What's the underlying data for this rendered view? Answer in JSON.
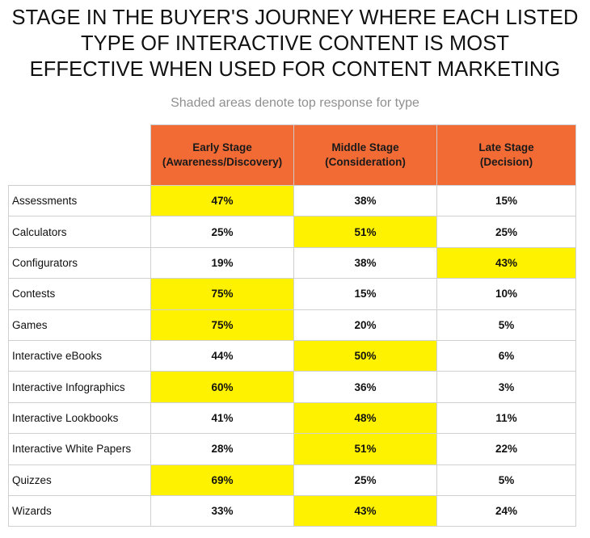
{
  "title_lines": [
    "STAGE IN THE BUYER'S JOURNEY WHERE EACH LISTED",
    "TYPE OF INTERACTIVE CONTENT IS MOST",
    "EFFECTIVE WHEN USED FOR CONTENT MARKETING"
  ],
  "subtitle": "Shaded areas denote top response for type",
  "colors": {
    "header_bg": "#f26b35",
    "highlight": "#fff200"
  },
  "chart_data": {
    "type": "table",
    "columns": [
      {
        "line1": "Early Stage",
        "line2": "(Awareness/Discovery)"
      },
      {
        "line1": "Middle Stage",
        "line2": "(Consideration)"
      },
      {
        "line1": "Late Stage",
        "line2": "(Decision)"
      }
    ],
    "rows": [
      {
        "label": "Assessments",
        "values": [
          "47%",
          "38%",
          "15%"
        ],
        "top": 0
      },
      {
        "label": "Calculators",
        "values": [
          "25%",
          "51%",
          "25%"
        ],
        "top": 1
      },
      {
        "label": "Configurators",
        "values": [
          "19%",
          "38%",
          "43%"
        ],
        "top": 2
      },
      {
        "label": "Contests",
        "values": [
          "75%",
          "15%",
          "10%"
        ],
        "top": 0
      },
      {
        "label": "Games",
        "values": [
          "75%",
          "20%",
          "5%"
        ],
        "top": 0
      },
      {
        "label": "Interactive eBooks",
        "values": [
          "44%",
          "50%",
          "6%"
        ],
        "top": 1
      },
      {
        "label": "Interactive Infographics",
        "values": [
          "60%",
          "36%",
          "3%"
        ],
        "top": 0
      },
      {
        "label": "Interactive Lookbooks",
        "values": [
          "41%",
          "48%",
          "11%"
        ],
        "top": 1
      },
      {
        "label": "Interactive White Papers",
        "values": [
          "28%",
          "51%",
          "22%"
        ],
        "top": 1
      },
      {
        "label": "Quizzes",
        "values": [
          "69%",
          "25%",
          "5%"
        ],
        "top": 0
      },
      {
        "label": "Wizards",
        "values": [
          "33%",
          "43%",
          "24%"
        ],
        "top": 1
      }
    ]
  }
}
